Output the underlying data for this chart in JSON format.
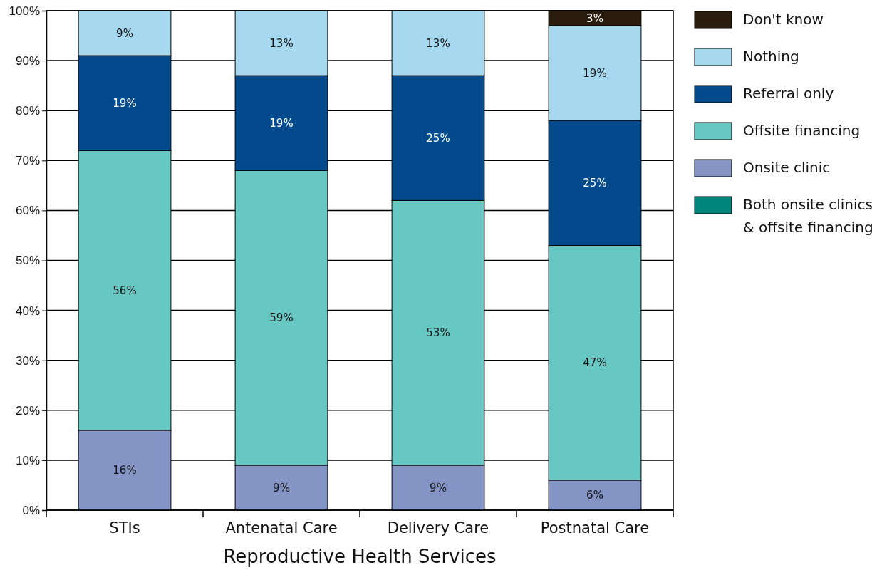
{
  "chart_data": {
    "type": "bar",
    "stacked": true,
    "xlabel": "Reproductive Health Services",
    "categories": [
      "STIs",
      "Antenatal Care",
      "Delivery Care",
      "Postnatal Care"
    ],
    "series": [
      {
        "name": "Both onsite clinics & offsite financing",
        "color": "#00857c",
        "values": [
          null,
          null,
          null,
          null
        ],
        "value_labels": [
          null,
          null,
          null,
          null
        ]
      },
      {
        "name": "Onsite clinic",
        "color": "#8494c4",
        "values": [
          16,
          9,
          9,
          6
        ],
        "value_labels": [
          "16%",
          "9%",
          "9%",
          "6%"
        ]
      },
      {
        "name": "Offsite financing",
        "color": "#67c7c3",
        "values": [
          56,
          59,
          53,
          47
        ],
        "value_labels": [
          "56%",
          "59%",
          "53%",
          "47%"
        ]
      },
      {
        "name": "Referral only",
        "color": "#034a8c",
        "values": [
          19,
          19,
          25,
          25
        ],
        "value_labels": [
          "19%",
          "19%",
          "25%",
          "25%"
        ]
      },
      {
        "name": "Nothing",
        "color": "#a6d8f0",
        "values": [
          9,
          13,
          13,
          19
        ],
        "value_labels": [
          "9%",
          "13%",
          "13%",
          "19%"
        ]
      },
      {
        "name": "Don't know",
        "color": "#2b1d0e",
        "values": [
          null,
          null,
          null,
          3
        ],
        "value_labels": [
          null,
          null,
          null,
          "3%"
        ]
      }
    ],
    "ylim": [
      0,
      100
    ],
    "yticks": [
      {
        "value": 0,
        "label": "0%"
      },
      {
        "value": 10,
        "label": "10%"
      },
      {
        "value": 20,
        "label": "20%"
      },
      {
        "value": 30,
        "label": "30%"
      },
      {
        "value": 40,
        "label": "40%"
      },
      {
        "value": 50,
        "label": "50%"
      },
      {
        "value": 60,
        "label": "60%"
      },
      {
        "value": 70,
        "label": "70%"
      },
      {
        "value": 80,
        "label": "80%"
      },
      {
        "value": 90,
        "label": "90%"
      },
      {
        "value": 100,
        "label": "100%"
      }
    ],
    "grid": "y",
    "legend": "right"
  }
}
